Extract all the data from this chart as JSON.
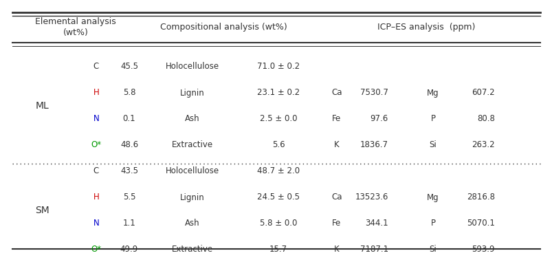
{
  "groups": [
    {
      "label": "ML",
      "elemental": [
        {
          "elem": "C",
          "val": "45.5"
        },
        {
          "elem": "H",
          "val": "5.8"
        },
        {
          "elem": "N",
          "val": "0.1"
        },
        {
          "elem": "O*",
          "val": "48.6"
        }
      ],
      "compositional": [
        {
          "name": "Holocellulose",
          "val": "71.0 ± 0.2"
        },
        {
          "name": "Lignin",
          "val": "23.1 ± 0.2"
        },
        {
          "name": "Ash",
          "val": "2.5 ± 0.0"
        },
        {
          "name": "Extractive",
          "val": "5.6"
        }
      ],
      "icp": [
        {
          "elem": "",
          "val": "",
          "elem2": "",
          "val2": ""
        },
        {
          "elem": "Ca",
          "val": "7530.7",
          "elem2": "Mg",
          "val2": "607.2"
        },
        {
          "elem": "Fe",
          "val": "97.6",
          "elem2": "P",
          "val2": "80.8"
        },
        {
          "elem": "K",
          "val": "1836.7",
          "elem2": "Si",
          "val2": "263.2"
        }
      ]
    },
    {
      "label": "SM",
      "elemental": [
        {
          "elem": "C",
          "val": "43.5"
        },
        {
          "elem": "H",
          "val": "5.5"
        },
        {
          "elem": "N",
          "val": "1.1"
        },
        {
          "elem": "O*",
          "val": "49.9"
        }
      ],
      "compositional": [
        {
          "name": "Holocellulose",
          "val": "48.7 ± 2.0"
        },
        {
          "name": "Lignin",
          "val": "24.5 ± 0.5"
        },
        {
          "name": "Ash",
          "val": "5.8 ± 0.0"
        },
        {
          "name": "Extractive",
          "val": "15.7"
        }
      ],
      "icp": [
        {
          "elem": "",
          "val": "",
          "elem2": "",
          "val2": ""
        },
        {
          "elem": "Ca",
          "val": "13523.6",
          "elem2": "Mg",
          "val2": "2816.8"
        },
        {
          "elem": "Fe",
          "val": "344.1",
          "elem2": "P",
          "val2": "5070.1"
        },
        {
          "elem": "K",
          "val": "7187.1",
          "elem2": "Si",
          "val2": "593.9"
        }
      ]
    }
  ],
  "elem_colors": {
    "C": "#333333",
    "H": "#cc0000",
    "N": "#0000cc",
    "O*": "#009900"
  },
  "font_size": 8.5,
  "header_font_size": 9.0,
  "label_font_size": 10,
  "bg_color": "#ffffff"
}
